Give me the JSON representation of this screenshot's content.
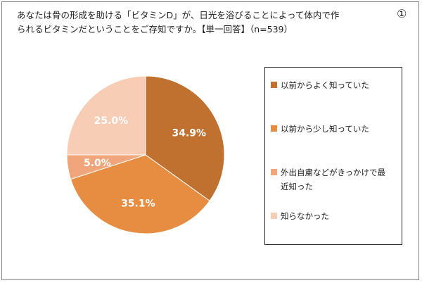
{
  "page_number": "①",
  "question": {
    "line1": "あなたは骨の形成を助ける「ビタミンD」が、日光を浴びることによって体内で作",
    "line2": "られるビタミンだということをご存知ですか。【単一回答】（n=539）"
  },
  "chart_data": {
    "type": "pie",
    "start_angle_deg": 0,
    "direction": "clockwise",
    "slices": [
      {
        "name": "以前からよく知っていた",
        "value": 34.9,
        "label": "34.9%",
        "color": "#c0712f",
        "label_color": "#ffffff"
      },
      {
        "name": "以前から少し知っていた",
        "value": 35.1,
        "label": "35.1%",
        "color": "#e68d42",
        "label_color": "#ffffff"
      },
      {
        "name": "外出自粛などがきっかけで最近知った",
        "value": 5.0,
        "label": "5.0%",
        "color": "#f0a57a",
        "label_color": "#ffffff"
      },
      {
        "name": "知らなかった",
        "value": 25.0,
        "label": "25.0%",
        "color": "#f7cdb5",
        "label_color": "#ffffff"
      }
    ],
    "legend": [
      {
        "line1": "以前からよく知っていた",
        "line2": "",
        "color": "#c0712f"
      },
      {
        "line1": "以前から少し知っていた",
        "line2": "",
        "color": "#e68d42"
      },
      {
        "line1": "外出自粛などがきっかけで最",
        "line2": "近知った",
        "color": "#f0a57a"
      },
      {
        "line1": "知らなかった",
        "line2": "",
        "color": "#f7cdb5"
      }
    ],
    "legend_position": "right"
  }
}
